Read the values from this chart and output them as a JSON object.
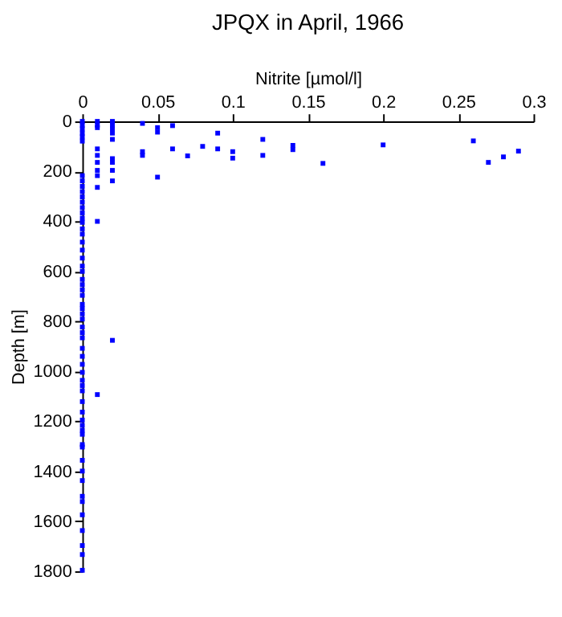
{
  "chart_data": {
    "type": "scatter",
    "title": "JPQX in April, 1966",
    "xlabel": "Nitrite [µmol/l]",
    "ylabel": "Depth [m]",
    "xlim": [
      0,
      0.3
    ],
    "xticks": [
      0,
      0.05,
      0.1,
      0.15,
      0.2,
      0.25,
      0.3
    ],
    "ylim": [
      1800,
      0
    ],
    "yticks": [
      0,
      200,
      400,
      600,
      800,
      1000,
      1200,
      1400,
      1600,
      1800
    ],
    "grid": false,
    "marker": "square",
    "legend": false,
    "series": [
      {
        "color": "#0000ff",
        "x": [
          0,
          0,
          0,
          0,
          0,
          0,
          0,
          0,
          0,
          0,
          0,
          0,
          0,
          0,
          0,
          0,
          0,
          0,
          0,
          0,
          0,
          0,
          0,
          0,
          0,
          0,
          0,
          0,
          0,
          0,
          0,
          0,
          0,
          0,
          0,
          0,
          0,
          0,
          0,
          0,
          0,
          0,
          0,
          0,
          0,
          0,
          0,
          0,
          0,
          0,
          0,
          0,
          0,
          0,
          0,
          0,
          0,
          0,
          0,
          0.01,
          0.01,
          0.01,
          0.01,
          0.01,
          0.01,
          0.01,
          0.01,
          0.01,
          0.01,
          0.01,
          0.02,
          0.02,
          0.02,
          0.02,
          0.02,
          0.02,
          0.02,
          0.02,
          0.02,
          0.02,
          0.04,
          0.04,
          0.04,
          0.05,
          0.05,
          0.05,
          0.06,
          0.06,
          0.07,
          0.08,
          0.09,
          0.09,
          0.1,
          0.1,
          0.12,
          0.12,
          0.14,
          0.14,
          0.16,
          0.2,
          0.26,
          0.27,
          0.28,
          0.29
        ],
        "values": [
          0,
          15,
          30,
          47,
          62,
          79,
          217,
          238,
          260,
          281,
          302,
          323,
          345,
          366,
          387,
          404,
          430,
          451,
          483,
          515,
          547,
          579,
          600,
          632,
          653,
          674,
          696,
          732,
          749,
          770,
          791,
          823,
          845,
          866,
          908,
          940,
          972,
          1004,
          1036,
          1057,
          1078,
          1121,
          1163,
          1195,
          1236,
          1252,
          1293,
          1303,
          1356,
          1399,
          1437,
          1500,
          1521,
          1574,
          1637,
          1697,
          1733,
          1796,
          1216,
          0,
          15,
          25,
          110,
          136,
          164,
          196,
          217,
          264,
          400,
          1093,
          0,
          15,
          30,
          47,
          72,
          149,
          164,
          196,
          238,
          876,
          8,
          121,
          136,
          25,
          43,
          223,
          17,
          110,
          138,
          100,
          47,
          110,
          121,
          147,
          72,
          136,
          96,
          113,
          168,
          94,
          78,
          164,
          142,
          119
        ]
      }
    ]
  }
}
